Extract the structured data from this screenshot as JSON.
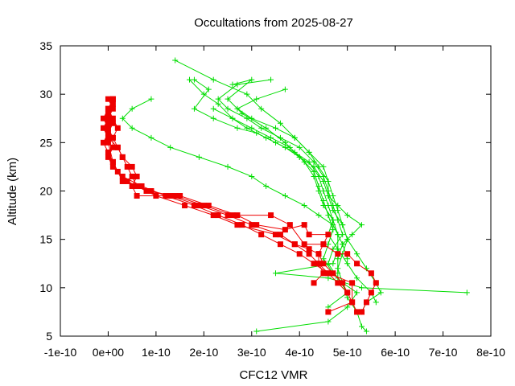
{
  "chart_data": {
    "type": "line",
    "title": "Occultations from 2025-08-27",
    "xlabel": "CFC12 VMR",
    "ylabel": "Altitude (km)",
    "xlim": [
      -1e-10,
      8e-10
    ],
    "ylim": [
      5,
      35
    ],
    "x_ticks": [
      "-1e-10",
      "0e+00",
      "1e-10",
      "2e-10",
      "3e-10",
      "4e-10",
      "5e-10",
      "6e-10",
      "7e-10",
      "8e-10"
    ],
    "y_ticks": [
      "5",
      "10",
      "15",
      "20",
      "25",
      "30",
      "35"
    ],
    "grid": false,
    "colors": {
      "green": "#00dd00",
      "red": "#ee0000"
    },
    "series": [
      {
        "color": "green",
        "marker": "plus",
        "points": [
          [
            1.4e-10,
            33.5
          ],
          [
            2.2e-10,
            31.5
          ],
          [
            2.9e-10,
            30.0
          ],
          [
            3.2e-10,
            28.5
          ],
          [
            3.6e-10,
            27.0
          ],
          [
            3.9e-10,
            25.5
          ],
          [
            4.2e-10,
            24.0
          ],
          [
            4.5e-10,
            22.5
          ],
          [
            4.6e-10,
            21.0
          ],
          [
            4.7e-10,
            19.5
          ],
          [
            4.8e-10,
            18.0
          ],
          [
            4.9e-10,
            16.5
          ],
          [
            5e-10,
            15.0
          ],
          [
            4.9e-10,
            13.5
          ],
          [
            4.8e-10,
            12.0
          ],
          [
            4.9e-10,
            10.5
          ],
          [
            5e-10,
            9.0
          ],
          [
            5.2e-10,
            7.5
          ],
          [
            5.3e-10,
            6.0
          ],
          [
            5.4e-10,
            5.5
          ]
        ]
      },
      {
        "color": "green",
        "marker": "plus",
        "points": [
          [
            2.6e-10,
            31.0
          ],
          [
            3e-10,
            31.5
          ],
          [
            2.5e-10,
            29.5
          ],
          [
            2.8e-10,
            28.0
          ],
          [
            3.3e-10,
            26.5
          ],
          [
            3.7e-10,
            25.0
          ],
          [
            4e-10,
            23.5
          ],
          [
            4.3e-10,
            22.0
          ],
          [
            4.4e-10,
            20.5
          ],
          [
            4.5e-10,
            19.0
          ],
          [
            4.6e-10,
            17.5
          ],
          [
            4.7e-10,
            16.0
          ],
          [
            4.6e-10,
            14.5
          ],
          [
            4.5e-10,
            13.0
          ],
          [
            4.7e-10,
            11.5
          ],
          [
            4.9e-10,
            10.5
          ],
          [
            5.2e-10,
            9.5
          ],
          [
            5e-10,
            8.0
          ],
          [
            4.6e-10,
            6.5
          ],
          [
            3.1e-10,
            5.5
          ]
        ]
      },
      {
        "color": "green",
        "marker": "plus",
        "points": [
          [
            1.7e-10,
            31.5
          ],
          [
            2e-10,
            30.0
          ],
          [
            2.3e-10,
            29.0
          ],
          [
            2.6e-10,
            27.5
          ],
          [
            3e-10,
            26.5
          ],
          [
            3.4e-10,
            25.5
          ],
          [
            3.8e-10,
            24.5
          ],
          [
            4.1e-10,
            23.0
          ],
          [
            4.3e-10,
            21.5
          ],
          [
            4.4e-10,
            20.0
          ],
          [
            4.5e-10,
            18.5
          ],
          [
            4.7e-10,
            17.0
          ],
          [
            4.8e-10,
            15.5
          ],
          [
            4.8e-10,
            14.0
          ],
          [
            4.7e-10,
            12.5
          ],
          [
            3.5e-10,
            11.5
          ],
          [
            4.6e-10,
            11.0
          ],
          [
            5.3e-10,
            10.0
          ],
          [
            7.5e-10,
            9.5
          ]
        ]
      },
      {
        "color": "green",
        "marker": "plus",
        "points": [
          [
            3.7e-10,
            30.5
          ],
          [
            3.1e-10,
            29.5
          ],
          [
            2.7e-10,
            28.5
          ],
          [
            3e-10,
            27.5
          ],
          [
            3.5e-10,
            26.5
          ],
          [
            3.9e-10,
            25.5
          ],
          [
            4.2e-10,
            24.0
          ],
          [
            4.4e-10,
            22.5
          ],
          [
            4.6e-10,
            21.0
          ],
          [
            4.6e-10,
            19.5
          ],
          [
            4.7e-10,
            18.0
          ],
          [
            4.9e-10,
            16.5
          ],
          [
            5e-10,
            15.0
          ],
          [
            5.2e-10,
            13.5
          ],
          [
            5.4e-10,
            12.0
          ],
          [
            5.6e-10,
            10.5
          ],
          [
            5.7e-10,
            9.5
          ],
          [
            5.4e-10,
            8.5
          ],
          [
            5.3e-10,
            7.5
          ]
        ]
      },
      {
        "color": "green",
        "marker": "plus",
        "points": [
          [
            1.8e-10,
            31.5
          ],
          [
            2.1e-10,
            30.5
          ],
          [
            1.8e-10,
            28.5
          ],
          [
            2.2e-10,
            27.5
          ],
          [
            2.7e-10,
            26.5
          ],
          [
            3.1e-10,
            26.0
          ],
          [
            3.5e-10,
            25.0
          ],
          [
            3.9e-10,
            24.0
          ],
          [
            4.2e-10,
            23.0
          ],
          [
            4.4e-10,
            21.5
          ],
          [
            4.5e-10,
            20.0
          ],
          [
            4.6e-10,
            18.5
          ],
          [
            4.7e-10,
            17.0
          ],
          [
            4.6e-10,
            15.5
          ],
          [
            4.8e-10,
            14.0
          ],
          [
            5e-10,
            12.5
          ],
          [
            5.2e-10,
            11.0
          ],
          [
            5.5e-10,
            9.5
          ],
          [
            5.6e-10,
            8.5
          ]
        ]
      },
      {
        "color": "green",
        "marker": "plus",
        "points": [
          [
            3.4e-10,
            31.5
          ],
          [
            2.7e-10,
            31.0
          ],
          [
            2.3e-10,
            29.5
          ],
          [
            2.5e-10,
            28.5
          ],
          [
            2.9e-10,
            27.5
          ],
          [
            3.2e-10,
            26.5
          ],
          [
            3.6e-10,
            25.5
          ],
          [
            4e-10,
            24.5
          ],
          [
            4.3e-10,
            23.0
          ],
          [
            4.5e-10,
            21.5
          ],
          [
            4.6e-10,
            20.0
          ],
          [
            4.7e-10,
            18.5
          ],
          [
            4.8e-10,
            17.0
          ],
          [
            4.9e-10,
            15.5
          ],
          [
            4.7e-10,
            14.0
          ],
          [
            4.6e-10,
            12.5
          ],
          [
            4.8e-10,
            11.0
          ],
          [
            5e-10,
            9.5
          ],
          [
            4.6e-10,
            8.0
          ]
        ]
      },
      {
        "color": "green",
        "marker": "plus",
        "points": [
          [
            2.2e-10,
            28.5
          ],
          [
            2.6e-10,
            27.5
          ],
          [
            2.9e-10,
            26.5
          ],
          [
            3.3e-10,
            25.5
          ],
          [
            3.7e-10,
            24.5
          ],
          [
            4e-10,
            23.5
          ],
          [
            4.3e-10,
            22.5
          ],
          [
            4.5e-10,
            21.0
          ],
          [
            4.6e-10,
            19.5
          ],
          [
            4.8e-10,
            18.5
          ],
          [
            5e-10,
            17.5
          ],
          [
            5.3e-10,
            16.5
          ],
          [
            5.1e-10,
            15.5
          ],
          [
            4.9e-10,
            14.5
          ],
          [
            4.8e-10,
            13.0
          ],
          [
            4.8e-10,
            11.5
          ]
        ]
      },
      {
        "color": "green",
        "marker": "plus",
        "points": [
          [
            9e-11,
            29.5
          ],
          [
            5e-11,
            28.5
          ],
          [
            3e-11,
            27.5
          ],
          [
            5e-11,
            26.5
          ],
          [
            9e-11,
            25.5
          ],
          [
            1.3e-10,
            24.5
          ],
          [
            1.9e-10,
            23.5
          ],
          [
            2.5e-10,
            22.5
          ],
          [
            3e-10,
            21.5
          ],
          [
            3.3e-10,
            20.5
          ],
          [
            3.7e-10,
            19.5
          ],
          [
            4.1e-10,
            18.5
          ],
          [
            4.4e-10,
            17.5
          ],
          [
            4.7e-10,
            16.5
          ],
          [
            4.8e-10,
            15.5
          ],
          [
            4.9e-10,
            14.5
          ],
          [
            5e-10,
            13.0
          ]
        ]
      },
      {
        "color": "red",
        "marker": "square",
        "points": [
          [
            1e-11,
            29.5
          ],
          [
            0.0,
            28.5
          ],
          [
            -1e-11,
            27.5
          ],
          [
            0.0,
            26.5
          ],
          [
            1e-11,
            25.5
          ],
          [
            1e-11,
            24.5
          ],
          [
            0.0,
            23.5
          ],
          [
            1e-11,
            22.5
          ],
          [
            3e-11,
            21.5
          ],
          [
            7e-11,
            20.5
          ],
          [
            1.2e-10,
            19.5
          ],
          [
            1.8e-10,
            18.5
          ],
          [
            2.3e-10,
            17.5
          ],
          [
            2.8e-10,
            16.5
          ],
          [
            3.2e-10,
            15.5
          ],
          [
            3.6e-10,
            14.5
          ],
          [
            4e-10,
            13.5
          ],
          [
            4.3e-10,
            12.5
          ],
          [
            4.6e-10,
            11.5
          ],
          [
            4.8e-10,
            10.5
          ],
          [
            5e-10,
            9.5
          ],
          [
            5.1e-10,
            8.5
          ],
          [
            4.6e-10,
            7.5
          ]
        ]
      },
      {
        "color": "red",
        "marker": "square",
        "points": [
          [
            0.0,
            29.5
          ],
          [
            1e-11,
            28.5
          ],
          [
            0.0,
            27.5
          ],
          [
            -1e-11,
            26.5
          ],
          [
            0.0,
            25.5
          ],
          [
            2e-11,
            24.5
          ],
          [
            3e-11,
            23.5
          ],
          [
            4e-11,
            22.5
          ],
          [
            5e-11,
            21.5
          ],
          [
            6e-11,
            20.5
          ],
          [
            1e-10,
            19.5
          ],
          [
            1.6e-10,
            18.5
          ],
          [
            2.2e-10,
            17.5
          ],
          [
            2.7e-10,
            16.5
          ],
          [
            3.5e-10,
            15.5
          ],
          [
            3.9e-10,
            14.5
          ],
          [
            4.2e-10,
            13.5
          ],
          [
            4.4e-10,
            12.5
          ],
          [
            4.5e-10,
            11.5
          ],
          [
            4.3e-10,
            10.5
          ]
        ]
      },
      {
        "color": "red",
        "marker": "square",
        "points": [
          [
            1e-11,
            29.0
          ],
          [
            0.0,
            28.0
          ],
          [
            1e-11,
            27.0
          ],
          [
            0.0,
            26.0
          ],
          [
            -1e-11,
            25.0
          ],
          [
            0.0,
            24.0
          ],
          [
            1e-11,
            23.0
          ],
          [
            2e-11,
            22.0
          ],
          [
            4e-11,
            21.0
          ],
          [
            8e-11,
            20.0
          ],
          [
            1.4e-10,
            19.5
          ],
          [
            2e-10,
            18.5
          ],
          [
            2.6e-10,
            17.5
          ],
          [
            3.4e-10,
            17.5
          ],
          [
            3.8e-10,
            16.5
          ],
          [
            4.1e-10,
            14.5
          ],
          [
            4.5e-10,
            14.5
          ],
          [
            4.8e-10,
            13.5
          ],
          [
            5e-10,
            13.5
          ],
          [
            5.2e-10,
            12.5
          ],
          [
            5.5e-10,
            11.5
          ],
          [
            5.6e-10,
            10.5
          ],
          [
            5.5e-10,
            9.5
          ],
          [
            5.4e-10,
            8.5
          ],
          [
            5.3e-10,
            7.5
          ]
        ]
      },
      {
        "color": "red",
        "marker": "square",
        "points": [
          [
            0.0,
            28.5
          ],
          [
            1e-11,
            27.5
          ],
          [
            2e-11,
            26.5
          ],
          [
            1e-11,
            25.5
          ],
          [
            2e-11,
            24.5
          ],
          [
            3e-11,
            23.5
          ],
          [
            5e-11,
            22.5
          ],
          [
            6e-11,
            21.5
          ],
          [
            5e-11,
            20.5
          ],
          [
            6e-11,
            19.5
          ],
          [
            1.5e-10,
            19.5
          ],
          [
            2.1e-10,
            18.5
          ],
          [
            2.7e-10,
            17.5
          ],
          [
            3.1e-10,
            16.5
          ],
          [
            3.7e-10,
            16.0
          ],
          [
            4.1e-10,
            16.5
          ],
          [
            4.2e-10,
            15.5
          ],
          [
            4.6e-10,
            15.5
          ],
          [
            4.5e-10,
            14.5
          ],
          [
            4.4e-10,
            13.5
          ],
          [
            4.4e-10,
            12.5
          ],
          [
            4.6e-10,
            11.5
          ],
          [
            5.1e-10,
            10.5
          ],
          [
            5.1e-10,
            8.5
          ],
          [
            5.2e-10,
            7.5
          ]
        ]
      },
      {
        "color": "red",
        "marker": "square",
        "points": [
          [
            1e-11,
            29.5
          ],
          [
            0.0,
            27.0
          ],
          [
            0.0,
            25.0
          ],
          [
            1e-11,
            23.0
          ],
          [
            3e-11,
            21.0
          ],
          [
            9e-11,
            20.0
          ],
          [
            1.3e-10,
            19.5
          ],
          [
            1.9e-10,
            18.5
          ],
          [
            2.5e-10,
            17.5
          ],
          [
            3e-10,
            16.5
          ],
          [
            3.6e-10,
            15.5
          ],
          [
            3.9e-10,
            14.5
          ],
          [
            4.2e-10,
            14.0
          ],
          [
            4.4e-10,
            13.5
          ],
          [
            4.5e-10,
            12.5
          ],
          [
            4.7e-10,
            11.5
          ],
          [
            4.9e-10,
            10.5
          ],
          [
            5e-10,
            9.5
          ]
        ]
      }
    ]
  }
}
